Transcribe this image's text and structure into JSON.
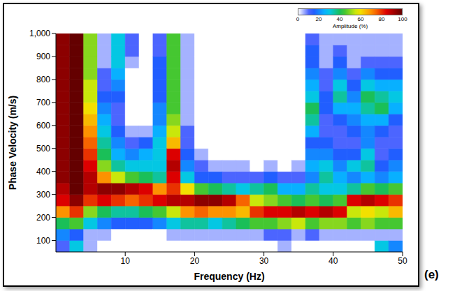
{
  "chart_data": {
    "type": "heatmap",
    "xlabel": "Frequency (Hz)",
    "ylabel": "Phase Velocity (m/s)",
    "panel_label": "(e)",
    "xlim": [
      0,
      50
    ],
    "xticks": [
      10,
      20,
      30,
      40,
      50
    ],
    "ylim": [
      50,
      1000
    ],
    "yticks": [
      100,
      200,
      300,
      400,
      500,
      600,
      700,
      800,
      900,
      {
        "value": 1000,
        "label": "1,000"
      }
    ],
    "x_bins": [
      0,
      2,
      4,
      6,
      8,
      10,
      12,
      14,
      16,
      18,
      20,
      22,
      24,
      26,
      28,
      30,
      32,
      34,
      36,
      38,
      40,
      42,
      44,
      46,
      48,
      50
    ],
    "y_bins": [
      50,
      100,
      150,
      200,
      250,
      300,
      350,
      400,
      450,
      500,
      550,
      600,
      650,
      700,
      750,
      800,
      850,
      900,
      950,
      1000
    ],
    "cells": [
      [
        10,
        20,
        40,
        70,
        85,
        90,
        95,
        95,
        95,
        95,
        95,
        95,
        95,
        95,
        95,
        95,
        95,
        95,
        95
      ],
      [
        30,
        15,
        45,
        80,
        95,
        100,
        100,
        100,
        100,
        100,
        100,
        100,
        100,
        100,
        100,
        100,
        100,
        100,
        100
      ],
      [
        5,
        5,
        30,
        50,
        80,
        90,
        90,
        85,
        80,
        75,
        70,
        65,
        60,
        55,
        55,
        50,
        50,
        50,
        50
      ],
      [
        0,
        5,
        20,
        40,
        85,
        95,
        70,
        50,
        40,
        35,
        30,
        25,
        20,
        15,
        10,
        10,
        5,
        5,
        5
      ],
      [
        0,
        0,
        15,
        35,
        80,
        95,
        55,
        35,
        25,
        20,
        15,
        10,
        10,
        15,
        20,
        25,
        30,
        30,
        30
      ],
      [
        0,
        0,
        15,
        35,
        75,
        90,
        45,
        30,
        20,
        10,
        5,
        0,
        0,
        0,
        0,
        0,
        5,
        10,
        10
      ],
      [
        0,
        0,
        15,
        40,
        80,
        85,
        40,
        30,
        25,
        15,
        5,
        0,
        0,
        0,
        0,
        0,
        0,
        0,
        0
      ],
      [
        0,
        0,
        20,
        45,
        85,
        70,
        35,
        30,
        30,
        30,
        25,
        20,
        20,
        15,
        15,
        15,
        15,
        10,
        10
      ],
      [
        0,
        5,
        30,
        55,
        90,
        80,
        85,
        90,
        85,
        65,
        55,
        50,
        45,
        45,
        45,
        45,
        45,
        45,
        45
      ],
      [
        0,
        5,
        35,
        70,
        90,
        60,
        30,
        20,
        15,
        10,
        10,
        5,
        5,
        5,
        5,
        5,
        5,
        5,
        5
      ],
      [
        0,
        5,
        35,
        75,
        95,
        45,
        15,
        10,
        5,
        0,
        0,
        0,
        0,
        0,
        0,
        0,
        0,
        0,
        0
      ],
      [
        0,
        5,
        30,
        70,
        95,
        40,
        15,
        5,
        0,
        0,
        0,
        0,
        0,
        0,
        0,
        0,
        0,
        0,
        0
      ],
      [
        0,
        5,
        35,
        70,
        90,
        35,
        10,
        5,
        0,
        0,
        0,
        0,
        0,
        0,
        0,
        0,
        0,
        0,
        0
      ],
      [
        0,
        5,
        40,
        65,
        75,
        30,
        10,
        5,
        0,
        0,
        0,
        0,
        0,
        0,
        0,
        0,
        0,
        0,
        0
      ],
      [
        0,
        5,
        45,
        80,
        55,
        35,
        10,
        0,
        0,
        0,
        0,
        0,
        0,
        0,
        0,
        0,
        0,
        0,
        0
      ],
      [
        0,
        10,
        45,
        85,
        50,
        40,
        15,
        5,
        0,
        0,
        0,
        0,
        0,
        0,
        0,
        0,
        0,
        0,
        0
      ],
      [
        5,
        10,
        50,
        85,
        45,
        25,
        10,
        0,
        0,
        0,
        0,
        0,
        0,
        0,
        0,
        0,
        0,
        0,
        0
      ],
      [
        0,
        5,
        55,
        90,
        40,
        25,
        10,
        5,
        0,
        0,
        0,
        0,
        0,
        0,
        0,
        0,
        0,
        0,
        0
      ],
      [
        0,
        10,
        45,
        85,
        45,
        35,
        20,
        25,
        20,
        15,
        25,
        35,
        40,
        30,
        25,
        20,
        15,
        15,
        10
      ],
      [
        0,
        5,
        50,
        90,
        40,
        30,
        35,
        30,
        20,
        15,
        10,
        10,
        15,
        15,
        10,
        10,
        5,
        5,
        5
      ],
      [
        0,
        5,
        50,
        85,
        45,
        30,
        25,
        20,
        15,
        10,
        10,
        15,
        25,
        35,
        30,
        20,
        15,
        10,
        5
      ],
      [
        0,
        5,
        45,
        55,
        85,
        35,
        20,
        30,
        15,
        10,
        15,
        20,
        25,
        20,
        15,
        10,
        5,
        5,
        5
      ],
      [
        0,
        5,
        50,
        60,
        90,
        45,
        25,
        35,
        30,
        20,
        20,
        25,
        35,
        40,
        30,
        20,
        10,
        5,
        5
      ],
      [
        30,
        5,
        45,
        55,
        85,
        40,
        20,
        15,
        10,
        10,
        15,
        25,
        40,
        35,
        25,
        15,
        10,
        5,
        5
      ],
      [
        20,
        5,
        45,
        65,
        80,
        45,
        25,
        20,
        15,
        10,
        10,
        15,
        25,
        30,
        25,
        15,
        10,
        5,
        5
      ]
    ],
    "colorbar": {
      "label": "Amplitude (%)",
      "range": [
        0,
        100
      ],
      "ticks": [
        0,
        20,
        40,
        60,
        80,
        100
      ]
    }
  }
}
